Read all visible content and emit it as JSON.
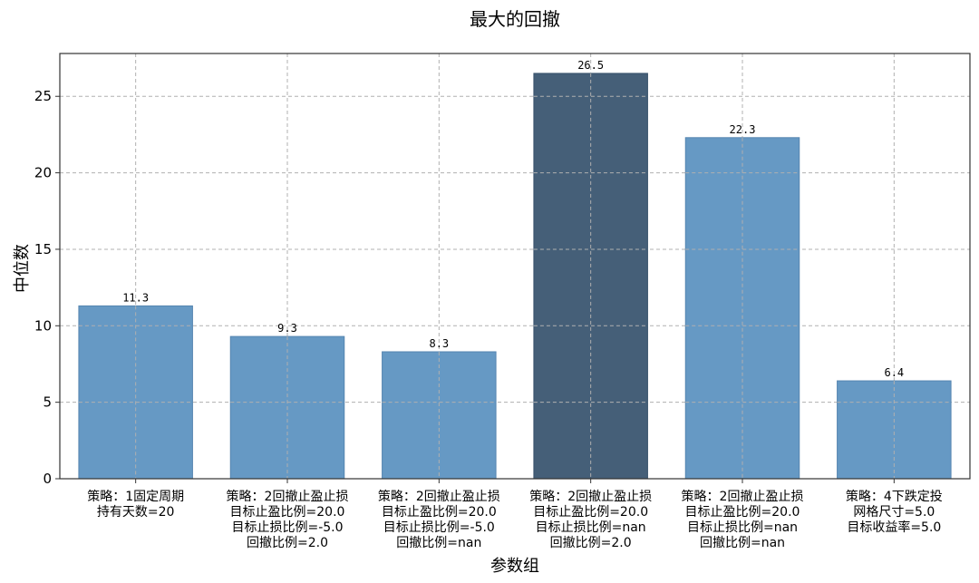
{
  "chart_data": {
    "type": "bar",
    "title": "最大的回撤",
    "xlabel": "参数组",
    "ylabel": "中位数",
    "ylim": [
      0,
      27.8
    ],
    "yticks": [
      0,
      5,
      10,
      15,
      20,
      25
    ],
    "grid": true,
    "categories": [
      [
        "策略：1固定周期",
        "持有天数=20"
      ],
      [
        "策略：2回撤止盈止损",
        "目标止盈比例=20.0",
        "目标止损比例=-5.0",
        "回撤比例=2.0"
      ],
      [
        "策略：2回撤止盈止损",
        "目标止盈比例=20.0",
        "目标止损比例=-5.0",
        "回撤比例=nan"
      ],
      [
        "策略：2回撤止盈止损",
        "目标止盈比例=20.0",
        "目标止损比例=nan",
        "回撤比例=2.0"
      ],
      [
        "策略：2回撤止盈止损",
        "目标止盈比例=20.0",
        "目标止损比例=nan",
        "回撤比例=nan"
      ],
      [
        "策略：4下跌定投",
        "网格尺寸=5.0",
        "目标收益率=5.0"
      ]
    ],
    "values": [
      11.3,
      9.3,
      8.3,
      26.5,
      22.3,
      6.4
    ],
    "value_labels": [
      "11.3",
      "9.3",
      "8.3",
      "26.5",
      "22.3",
      "6.4"
    ],
    "bar_colors": [
      "#6699c4",
      "#6699c4",
      "#6699c4",
      "#455f78",
      "#6699c4",
      "#6699c4"
    ],
    "bar_edge_colors": [
      "#5585b0",
      "#5585b0",
      "#5585b0",
      "#36506a",
      "#5585b0",
      "#5585b0"
    ],
    "highlight_index": 3
  }
}
